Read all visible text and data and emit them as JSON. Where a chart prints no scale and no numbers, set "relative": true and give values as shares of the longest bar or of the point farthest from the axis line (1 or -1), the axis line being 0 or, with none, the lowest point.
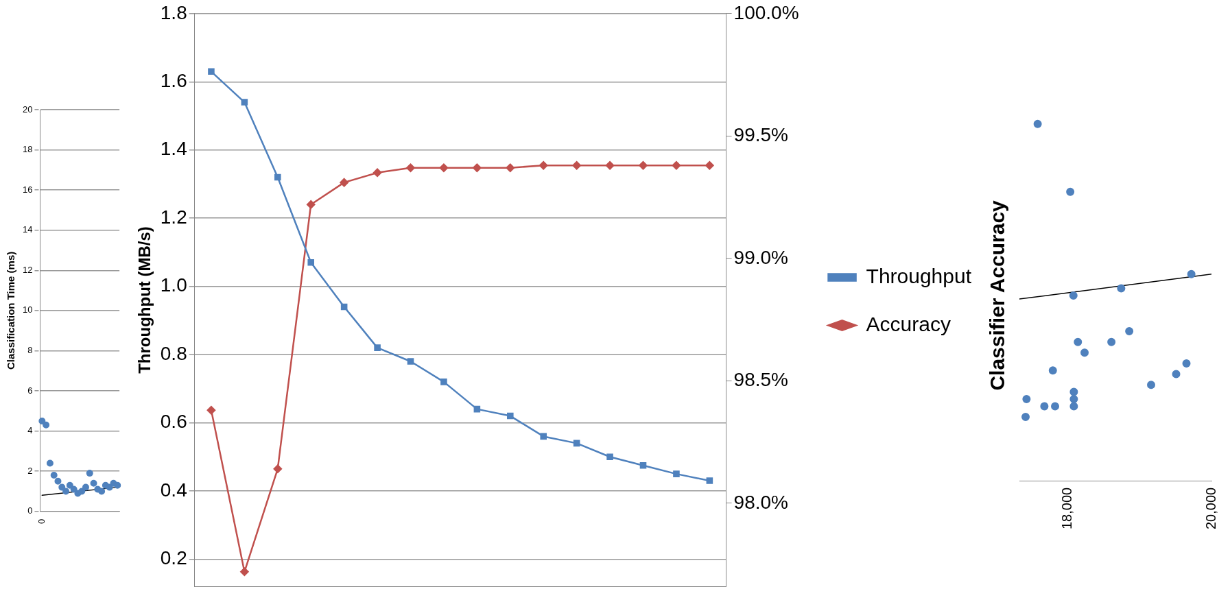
{
  "chart_data": [
    {
      "type": "scatter",
      "ylabel": "Classification Time (ms)",
      "categories": [
        "0",
        null,
        null,
        null,
        null,
        null,
        null,
        null,
        null,
        null,
        null,
        null,
        null,
        null,
        null,
        null,
        null,
        null,
        null,
        null
      ],
      "ylim": [
        0,
        20
      ],
      "yticks": [
        0,
        2,
        4,
        6,
        8,
        10,
        12,
        14,
        16,
        18,
        20
      ],
      "grid": "y",
      "marker": "circle",
      "series": [
        {
          "type": "scatter",
          "color": "#4f81bd",
          "values": [
            4.5,
            4.3,
            2.4,
            1.8,
            1.5,
            1.2,
            1.0,
            1.3,
            1.1,
            0.9,
            1.0,
            1.2,
            1.9,
            1.4,
            1.1,
            1.0,
            1.3,
            1.2,
            1.4,
            1.3
          ]
        },
        {
          "type": "line",
          "color": "#000000",
          "marker": "none",
          "values": [
            0.8,
            null,
            null,
            null,
            null,
            null,
            null,
            null,
            null,
            null,
            null,
            null,
            null,
            null,
            null,
            null,
            null,
            null,
            null,
            1.2
          ]
        }
      ]
    },
    {
      "type": "line",
      "ylabel": "Throughput (MB/s)",
      "categories": [
        null,
        null,
        null,
        null,
        null,
        null,
        null,
        null,
        null,
        null,
        null,
        null,
        null,
        null,
        null,
        null
      ],
      "ylim": [
        0.12,
        1.8
      ],
      "yticks": [
        {
          "value": 0.2,
          "label": "0.2"
        },
        {
          "value": 0.4,
          "label": "0.4"
        },
        {
          "value": 0.6,
          "label": "0.6"
        },
        {
          "value": 0.8,
          "label": "0.8"
        },
        {
          "value": 1,
          "label": "1.0"
        },
        {
          "value": 1.2,
          "label": "1.2"
        },
        {
          "value": 1.4,
          "label": "1.4"
        },
        {
          "value": 1.6,
          "label": "1.6"
        },
        {
          "value": 1.8,
          "label": "1.8"
        }
      ],
      "y2lim": [
        97.66,
        100
      ],
      "y2ticks": [
        {
          "value": 98,
          "label": "98.0%"
        },
        {
          "value": 98.5,
          "label": "98.5%"
        },
        {
          "value": 99,
          "label": "99.0%"
        },
        {
          "value": 99.5,
          "label": "99.5%"
        },
        {
          "value": 100,
          "label": "100.0%"
        }
      ],
      "grid": "y",
      "legend": "right",
      "series": [
        {
          "name": "Throughput",
          "color": "#4f81bd",
          "marker": "square",
          "values": [
            1.63,
            1.54,
            1.32,
            1.07,
            0.94,
            0.82,
            0.78,
            0.72,
            0.64,
            0.62,
            0.56,
            0.54,
            0.5,
            0.475,
            0.45,
            0.43
          ]
        },
        {
          "name": "Accuracy",
          "color": "#c0504d",
          "marker": "diamond",
          "axis": "y2",
          "values": [
            98.38,
            97.72,
            98.14,
            99.22,
            99.31,
            99.35,
            99.37,
            99.37,
            99.37,
            99.37,
            99.38,
            99.38,
            99.38,
            99.38,
            99.38,
            99.38
          ]
        }
      ]
    },
    {
      "type": "scatter",
      "ylabel": "Classifier Accuracy",
      "relative": true,
      "xlim": [
        17330,
        20000
      ],
      "xticks": [
        {
          "value": 18000,
          "label": "18,000"
        },
        {
          "value": 20000,
          "label": "20,000"
        }
      ],
      "tick_labels": "x",
      "marker": "circle",
      "series": [
        {
          "type": "scatter",
          "color": "#4f81bd",
          "x": [
            17584,
            18037,
            18081,
            18745,
            19720,
            18143,
            18236,
            18609,
            18857,
            17795,
            19652,
            19509,
            19161,
            18087,
            18087,
            18087,
            17429,
            17677,
            17826,
            17416
          ],
          "values": [
            1.0,
            0.81,
            0.52,
            0.54,
            0.58,
            0.39,
            0.36,
            0.39,
            0.42,
            0.31,
            0.33,
            0.3,
            0.27,
            0.25,
            0.23,
            0.21,
            0.23,
            0.21,
            0.21,
            0.18
          ]
        },
        {
          "type": "line",
          "color": "#000000",
          "marker": "none",
          "x": [
            17330,
            20000
          ],
          "values": [
            0.51,
            0.58
          ]
        }
      ]
    }
  ]
}
